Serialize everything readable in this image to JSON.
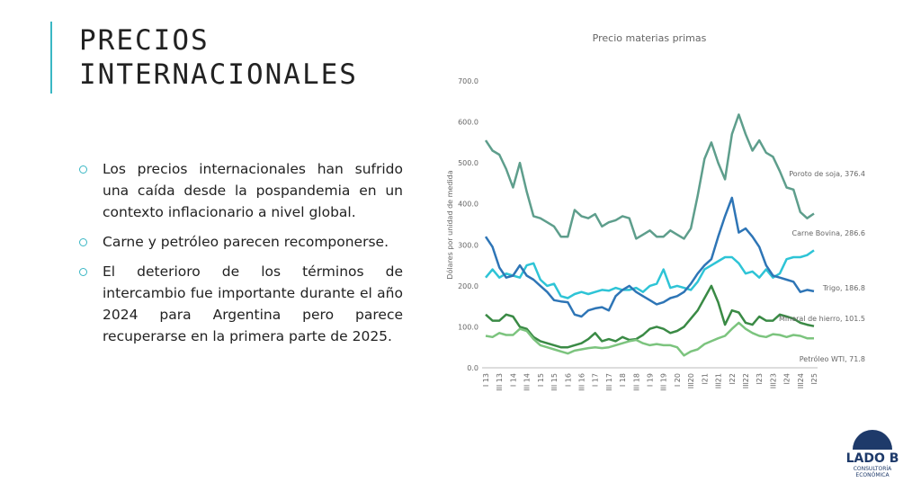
{
  "header": {
    "title_lines": [
      "PRECIOS",
      "INTERNACIONALES"
    ]
  },
  "bullets": [
    "Los precios internacionales han sufrido una caída desde la pospandemia en un contexto inflacionario a nivel global.",
    "Carne y petróleo parecen recomponerse.",
    "El deterioro de los términos de intercambio fue importante durante el año 2024 para Argentina pero parece recuperarse en la primera parte de 2025."
  ],
  "logo": {
    "name": "LADO B",
    "tagline": "CONSULTORÍA ECONÓMICA"
  },
  "chart_data": {
    "type": "line",
    "title": "Precio materias primas",
    "y_label": "Dólares por unidad de medida",
    "categories": [
      "I 13",
      null,
      "III 13",
      null,
      "I 14",
      null,
      "III 14",
      null,
      "I 15",
      null,
      "III 15",
      null,
      "I 16",
      null,
      "III 16",
      null,
      "I 17",
      null,
      "III 17",
      null,
      "I 18",
      null,
      "III 18",
      null,
      "I 19",
      null,
      "III 19",
      null,
      "I 20",
      null,
      "III20",
      null,
      "I21",
      null,
      "III21",
      null,
      "I22",
      null,
      "III22",
      null,
      "I23",
      null,
      "III23",
      null,
      "I24",
      null,
      "III24",
      null,
      "I25"
    ],
    "ylim": [
      0,
      700
    ],
    "yticks": [
      {
        "value": 0,
        "label": "0.0"
      },
      {
        "value": 100,
        "label": "100.0"
      },
      {
        "value": 200,
        "label": "200.0"
      },
      {
        "value": 300,
        "label": "300.0"
      },
      {
        "value": 400,
        "label": "400.0"
      },
      {
        "value": 500,
        "label": "500.0"
      },
      {
        "value": 600,
        "label": "600.0"
      },
      {
        "value": 700,
        "label": "700.0"
      }
    ],
    "series": [
      {
        "name": "Poroto de soja",
        "end_label": "Poroto de soja, 376.4",
        "color": "#5e9e8c",
        "values": [
          555,
          530,
          520,
          485,
          440,
          500,
          430,
          370,
          365,
          355,
          345,
          320,
          320,
          385,
          370,
          365,
          375,
          345,
          355,
          360,
          370,
          365,
          315,
          325,
          335,
          320,
          320,
          335,
          325,
          315,
          340,
          420,
          510,
          550,
          500,
          460,
          570,
          618,
          570,
          530,
          555,
          525,
          515,
          480,
          440,
          435,
          380,
          365,
          376.4
        ]
      },
      {
        "name": "Carne Bovina",
        "end_label": "Carne Bovina, 286.6",
        "color": "#2ec4d6",
        "values": [
          220,
          240,
          220,
          230,
          225,
          220,
          250,
          255,
          215,
          200,
          205,
          175,
          170,
          180,
          185,
          180,
          185,
          190,
          188,
          195,
          190,
          190,
          195,
          185,
          200,
          205,
          240,
          195,
          200,
          195,
          190,
          210,
          240,
          250,
          260,
          270,
          270,
          255,
          230,
          235,
          220,
          240,
          220,
          230,
          265,
          270,
          270,
          275,
          286.6
        ]
      },
      {
        "name": "Trigo",
        "end_label": "Trigo, 186.8",
        "color": "#2e75b6",
        "values": [
          320,
          295,
          245,
          220,
          225,
          250,
          225,
          215,
          200,
          185,
          165,
          162,
          160,
          130,
          125,
          140,
          145,
          148,
          140,
          175,
          190,
          200,
          185,
          175,
          165,
          155,
          160,
          170,
          175,
          185,
          205,
          230,
          250,
          265,
          320,
          370,
          415,
          330,
          340,
          320,
          295,
          250,
          225,
          220,
          215,
          210,
          185,
          190,
          186.8
        ]
      },
      {
        "name": "Mineral de hierro",
        "end_label": "Mineral de hierro, 101.5",
        "color": "#3a8a45",
        "values": [
          130,
          115,
          115,
          130,
          125,
          100,
          95,
          75,
          65,
          60,
          55,
          50,
          50,
          55,
          60,
          70,
          85,
          65,
          70,
          65,
          75,
          68,
          70,
          80,
          95,
          100,
          95,
          85,
          90,
          100,
          120,
          140,
          170,
          200,
          160,
          105,
          140,
          135,
          110,
          105,
          125,
          115,
          115,
          130,
          125,
          120,
          110,
          105,
          101.5
        ]
      },
      {
        "name": "Petróleo WTI",
        "end_label": "Petróleo WTI, 71.8",
        "color": "#7cc47e",
        "values": [
          78,
          75,
          85,
          80,
          80,
          95,
          90,
          70,
          55,
          50,
          45,
          40,
          35,
          42,
          45,
          48,
          50,
          48,
          50,
          55,
          60,
          65,
          68,
          60,
          55,
          58,
          55,
          55,
          50,
          30,
          40,
          45,
          58,
          65,
          72,
          78,
          95,
          110,
          95,
          85,
          78,
          75,
          82,
          80,
          75,
          80,
          78,
          72,
          71.8
        ]
      }
    ]
  }
}
